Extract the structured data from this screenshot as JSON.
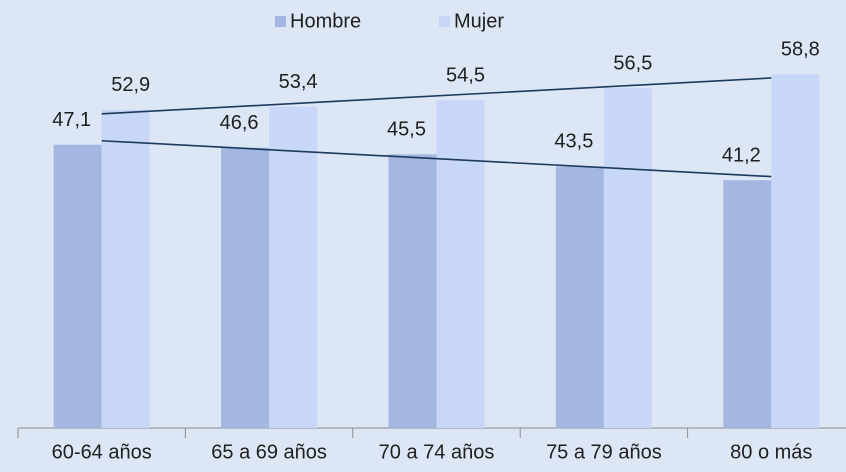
{
  "chart_data": {
    "type": "bar",
    "categories": [
      "60-64 años",
      "65 a 69 años",
      "70 a 74 años",
      "75 a 79 años",
      "80 o más"
    ],
    "series": [
      {
        "name": "Hombre",
        "color": "#a3b7e0",
        "values": [
          47.1,
          46.6,
          45.5,
          43.5,
          41.2
        ],
        "value_labels": [
          "47,1",
          "46,6",
          "45,5",
          "43,5",
          "41,2"
        ]
      },
      {
        "name": "Mujer",
        "color": "#c8d6f8",
        "values": [
          52.9,
          53.4,
          54.5,
          56.5,
          58.8
        ],
        "value_labels": [
          "52,9",
          "53,4",
          "54,5",
          "56,5",
          "58,8"
        ]
      }
    ],
    "ylim": [
      0,
      70
    ],
    "trendline": true,
    "trendline_color": "#1c3a5e",
    "legend": "top"
  }
}
